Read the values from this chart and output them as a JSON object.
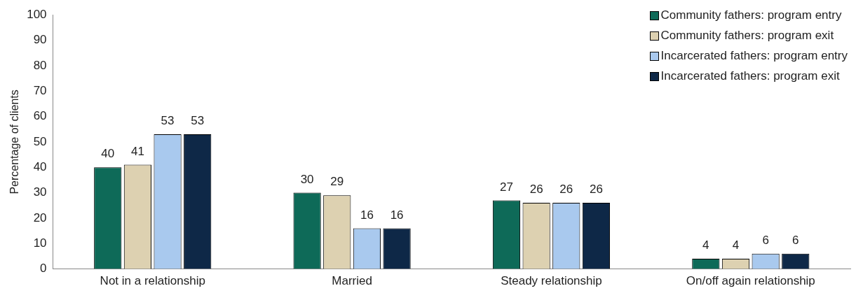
{
  "chart_data": {
    "type": "bar",
    "ylabel": "Percentage of clients",
    "categories": [
      "Not in a relationship",
      "Married",
      "Steady relationship",
      "On/off again relationship"
    ],
    "series": [
      {
        "name": "Community fathers: program entry",
        "color": "#0e6a58",
        "values": [
          40,
          30,
          27,
          4
        ]
      },
      {
        "name": "Community fathers: program exit",
        "color": "#ddd1b1",
        "values": [
          41,
          29,
          26,
          4
        ]
      },
      {
        "name": "Incarcerated fathers: program entry",
        "color": "#a9c9ee",
        "values": [
          53,
          16,
          26,
          6
        ]
      },
      {
        "name": "Incarcerated fathers: program exit",
        "color": "#0e2847",
        "values": [
          53,
          16,
          26,
          6
        ]
      }
    ],
    "ylim": [
      0,
      100
    ],
    "yticks": [
      0,
      10,
      20,
      30,
      40,
      50,
      60,
      70,
      80,
      90,
      100
    ],
    "grid": false,
    "legend": "top right",
    "data_labels": true
  }
}
